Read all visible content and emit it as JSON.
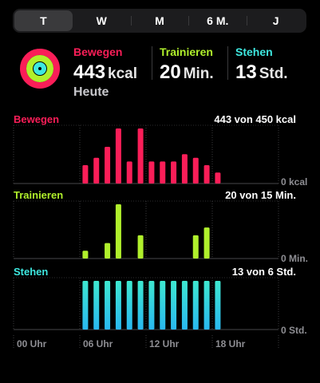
{
  "tabs": [
    {
      "label": "T",
      "active": true
    },
    {
      "label": "W",
      "active": false
    },
    {
      "label": "M",
      "active": false
    },
    {
      "label": "6 M.",
      "active": false
    },
    {
      "label": "J",
      "active": false
    }
  ],
  "summary": {
    "move": {
      "label": "Bewegen",
      "value": "443",
      "unit": "kcal",
      "sub": "Heute",
      "color": "#fa1e58"
    },
    "exercise": {
      "label": "Trainieren",
      "value": "20",
      "unit": "Min.",
      "color": "#b0f02c"
    },
    "stand": {
      "label": "Stehen",
      "value": "13",
      "unit": "Std.",
      "color": "#3ee8e0"
    }
  },
  "rings": {
    "move_progress": 0.98,
    "exercise_progress": 1.0,
    "stand_progress": 1.0
  },
  "time_labels": [
    "00 Uhr",
    "06 Uhr",
    "12 Uhr",
    "18 Uhr"
  ],
  "chart_data": [
    {
      "type": "bar",
      "name": "Bewegen",
      "total_text": "443 von 450 kcal",
      "zero_label": "0 kcal",
      "color": "#fa1e58",
      "values": [
        0,
        0,
        0,
        0,
        0,
        0,
        0,
        0,
        0,
        0,
        0,
        0,
        5,
        7,
        10,
        15,
        6,
        15,
        6,
        6,
        6,
        8,
        7,
        5,
        3,
        0
      ]
    },
    {
      "type": "bar",
      "name": "Trainieren",
      "total_text": "20 von 15 Min.",
      "zero_label": "0 Min.",
      "color": "#b0f02c",
      "values": [
        0,
        0,
        0,
        0,
        0,
        0,
        0,
        0,
        0,
        0,
        0,
        0,
        1,
        0,
        2,
        7,
        0,
        3,
        0,
        0,
        0,
        0,
        3,
        4,
        0,
        0
      ]
    },
    {
      "type": "bar",
      "name": "Stehen",
      "total_text": "13 von 6 Std.",
      "zero_label": "0 Std.",
      "color": "#3ee8e0",
      "values": [
        0,
        0,
        0,
        0,
        0,
        0,
        0,
        0,
        0,
        0,
        0,
        0,
        1,
        1,
        1,
        1,
        1,
        1,
        1,
        1,
        1,
        1,
        1,
        1,
        1,
        0
      ]
    }
  ]
}
